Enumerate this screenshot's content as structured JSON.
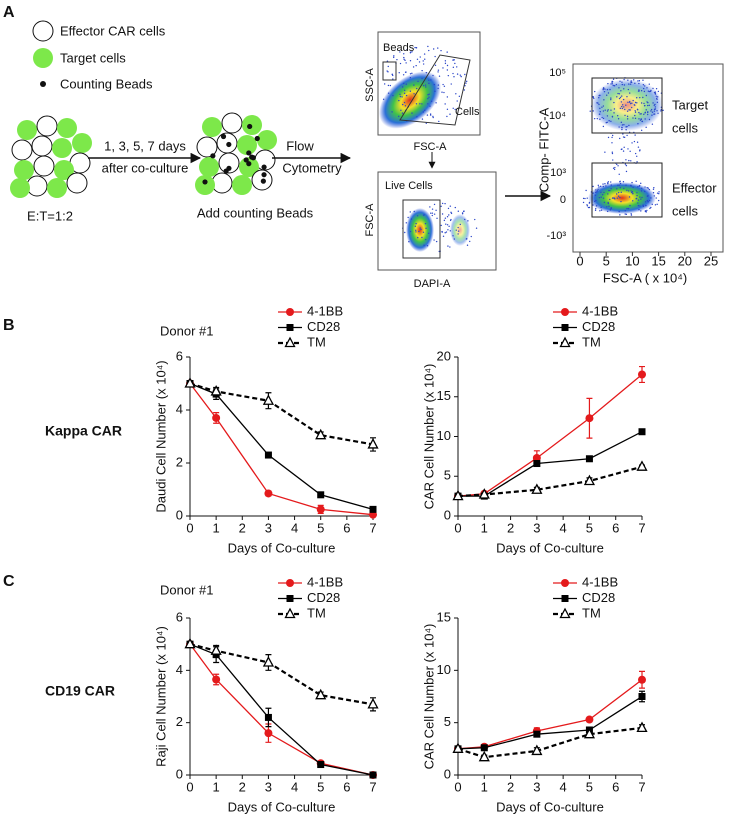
{
  "panel_a": {
    "label": "A",
    "legend": [
      "Effector CAR cells",
      "Target cells",
      "Counting Beads"
    ],
    "ratio": "E:T=1:2",
    "step1": [
      "1, 3, 5, 7 days",
      "after co-culture"
    ],
    "step2": "Add counting Beads",
    "step3": [
      "Flow",
      "Cytometry"
    ],
    "gate_plot": {
      "gates": [
        "Beads",
        "Cells"
      ],
      "ylabel": "SSC-A",
      "xlabel": "FSC-A"
    },
    "live_plot": {
      "gate": "Live Cells",
      "ylabel": "FSC-A",
      "xlabel": "DAPI-A"
    },
    "facs_plot": {
      "ylabel": "Comp- FITC-A",
      "yticks": [
        "10⁵",
        "10⁴",
        "10³",
        "0",
        "-10³"
      ],
      "xticks": [
        0,
        5,
        10,
        15,
        20,
        25
      ],
      "xlabel": "FSC-A ( x 10⁴)",
      "gates": [
        [
          "Target",
          "cells"
        ],
        [
          "Effector",
          "cells"
        ]
      ]
    }
  },
  "chart_data": [
    {
      "type": "line",
      "panel": "B",
      "subtitle": "Donor #1",
      "row_label": "Kappa CAR",
      "ylabel": "Daudi Cell Number (x 10⁴)",
      "xlabel": "Days of Co-culture",
      "x": [
        0,
        1,
        3,
        5,
        7
      ],
      "xlim": [
        0,
        7
      ],
      "xticks": [
        0,
        1,
        2,
        3,
        4,
        5,
        6,
        7
      ],
      "ylim": [
        0,
        6
      ],
      "yticks": [
        0,
        2,
        4,
        6
      ],
      "series": [
        {
          "name": "4-1BB",
          "color": "#e41a1c",
          "marker": "circle",
          "dashed": false,
          "values": [
            5,
            3.7,
            0.85,
            0.25,
            0.05
          ],
          "errors": [
            0,
            0.2,
            0.08,
            0.15,
            0.05
          ]
        },
        {
          "name": "CD28",
          "color": "#000000",
          "marker": "square",
          "dashed": false,
          "values": [
            5,
            4.6,
            2.3,
            0.8,
            0.25
          ],
          "errors": [
            0,
            0.2,
            0.08,
            0.1,
            0.05
          ]
        },
        {
          "name": "TM",
          "color": "#000000",
          "marker": "triangle",
          "dashed": true,
          "values": [
            5,
            4.7,
            4.35,
            3.05,
            2.7
          ],
          "errors": [
            0,
            0.15,
            0.3,
            0.12,
            0.25
          ]
        }
      ]
    },
    {
      "type": "line",
      "ylabel": "CAR Cell Number (x 10⁴)",
      "xlabel": "Days of Co-culture",
      "x": [
        0,
        1,
        3,
        5,
        7
      ],
      "xlim": [
        0,
        7
      ],
      "xticks": [
        0,
        1,
        2,
        3,
        4,
        5,
        6,
        7
      ],
      "ylim": [
        0,
        20
      ],
      "yticks": [
        0,
        5,
        10,
        15,
        20
      ],
      "series": [
        {
          "name": "4-1BB",
          "color": "#e41a1c",
          "marker": "circle",
          "dashed": false,
          "values": [
            2.5,
            2.8,
            7.3,
            12.3,
            17.8
          ],
          "errors": [
            0,
            0.2,
            0.9,
            2.5,
            1
          ]
        },
        {
          "name": "CD28",
          "color": "#000000",
          "marker": "square",
          "dashed": false,
          "values": [
            2.5,
            2.5,
            6.6,
            7.2,
            10.6
          ],
          "errors": [
            0,
            0.1,
            0.3,
            0.3,
            0.3
          ]
        },
        {
          "name": "TM",
          "color": "#000000",
          "marker": "triangle",
          "dashed": true,
          "values": [
            2.5,
            2.7,
            3.3,
            4.4,
            6.2
          ],
          "errors": [
            0,
            0.1,
            0.3,
            0.4,
            0.2
          ]
        }
      ]
    },
    {
      "type": "line",
      "panel": "C",
      "subtitle": "Donor #1",
      "row_label": "CD19 CAR",
      "ylabel": "Raji Cell Number (x 10⁴)",
      "xlabel": "Days of Co-culture",
      "x": [
        0,
        1,
        3,
        5,
        7
      ],
      "xlim": [
        0,
        7
      ],
      "xticks": [
        0,
        1,
        2,
        3,
        4,
        5,
        6,
        7
      ],
      "ylim": [
        0,
        6
      ],
      "yticks": [
        0,
        2,
        4,
        6
      ],
      "series": [
        {
          "name": "4-1BB",
          "color": "#e41a1c",
          "marker": "circle",
          "dashed": false,
          "values": [
            5,
            3.65,
            1.6,
            0.45,
            0
          ],
          "errors": [
            0,
            0.2,
            0.35,
            0.05,
            0.05
          ]
        },
        {
          "name": "CD28",
          "color": "#000000",
          "marker": "square",
          "dashed": false,
          "values": [
            5,
            4.6,
            2.2,
            0.4,
            0
          ],
          "errors": [
            0,
            0.3,
            0.35,
            0.05,
            0.05
          ]
        },
        {
          "name": "TM",
          "color": "#000000",
          "marker": "triangle",
          "dashed": true,
          "values": [
            5,
            4.75,
            4.3,
            3.05,
            2.7
          ],
          "errors": [
            0,
            0.2,
            0.3,
            0.12,
            0.25
          ]
        }
      ]
    },
    {
      "type": "line",
      "ylabel": "CAR Cell Number (x 10⁴)",
      "xlabel": "Days of Co-culture",
      "x": [
        0,
        1,
        3,
        5,
        7
      ],
      "xlim": [
        0,
        7
      ],
      "xticks": [
        0,
        1,
        2,
        3,
        4,
        5,
        6,
        7
      ],
      "ylim": [
        0,
        15
      ],
      "yticks": [
        0,
        5,
        10,
        15
      ],
      "series": [
        {
          "name": "4-1BB",
          "color": "#e41a1c",
          "marker": "circle",
          "dashed": false,
          "values": [
            2.5,
            2.7,
            4.2,
            5.3,
            9.1
          ],
          "errors": [
            0,
            0.2,
            0.3,
            0.2,
            0.8
          ]
        },
        {
          "name": "CD28",
          "color": "#000000",
          "marker": "square",
          "dashed": false,
          "values": [
            2.5,
            2.6,
            3.9,
            4.3,
            7.5
          ],
          "errors": [
            0,
            0.2,
            0.2,
            0.2,
            0.5
          ]
        },
        {
          "name": "TM",
          "color": "#000000",
          "marker": "triangle",
          "dashed": true,
          "values": [
            2.5,
            1.7,
            2.3,
            3.9,
            4.5
          ],
          "errors": [
            0,
            0.2,
            0.3,
            0.3,
            0.3
          ]
        }
      ]
    }
  ]
}
